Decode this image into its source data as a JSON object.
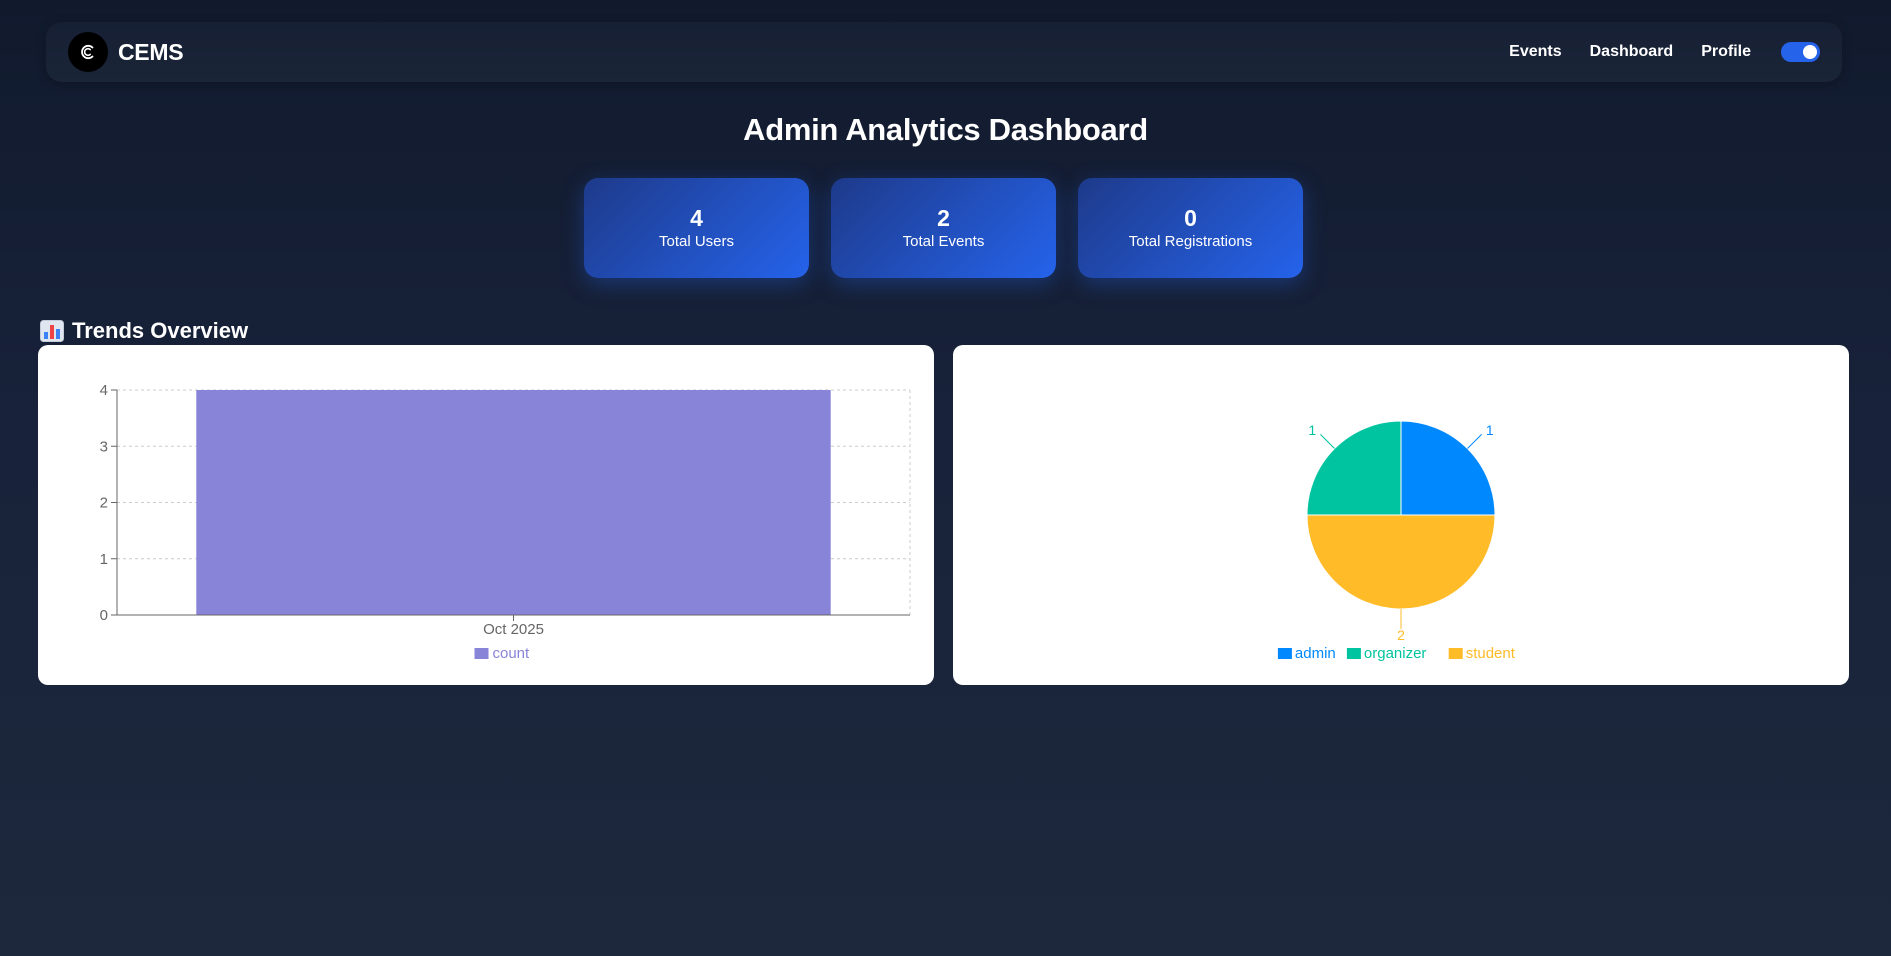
{
  "app": {
    "brand": "CEMS",
    "logo_letter": "C"
  },
  "nav": {
    "items": [
      {
        "label": "Events"
      },
      {
        "label": "Dashboard"
      },
      {
        "label": "Profile"
      }
    ],
    "theme_toggle_on": true
  },
  "page": {
    "title": "Admin Analytics Dashboard"
  },
  "stats": [
    {
      "value": "4",
      "label": "Total Users"
    },
    {
      "value": "2",
      "label": "Total Events"
    },
    {
      "value": "0",
      "label": "Total Registrations"
    }
  ],
  "section": {
    "title": "Trends Overview"
  },
  "colors": {
    "accent": "#2563eb",
    "bar": "#8884d8",
    "admin": "#0088fe",
    "organizer": "#00c49f",
    "student": "#ffbb28"
  },
  "chart_data": [
    {
      "type": "bar",
      "categories": [
        "Oct 2025"
      ],
      "series": [
        {
          "name": "count",
          "values": [
            4
          ]
        }
      ],
      "ylim": [
        0,
        4
      ],
      "yticks": [
        0,
        1,
        2,
        3,
        4
      ],
      "grid": true,
      "legend": "bottom"
    },
    {
      "type": "pie",
      "labels": [
        "admin",
        "organizer",
        "student"
      ],
      "values": [
        1,
        1,
        2
      ],
      "colors": [
        "#0088fe",
        "#00c49f",
        "#ffbb28"
      ],
      "legend": "bottom"
    }
  ]
}
